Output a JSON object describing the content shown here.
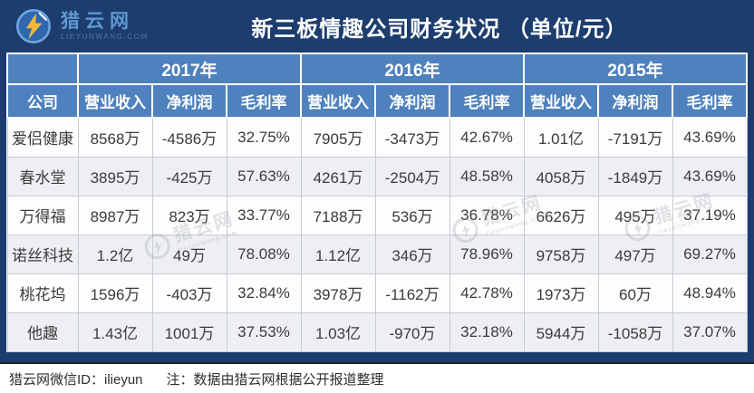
{
  "banner": {
    "logo_cn": "猎云网",
    "logo_en": "LIEYUNWANG.COM",
    "title": "新三板情趣公司财务状况 （单位/元）"
  },
  "icons": {
    "logo": "lightning-bolt-in-circle",
    "watermark": "lightning-bolt-in-circle"
  },
  "colors": {
    "banner_navy": "#1d3d6e",
    "header_blue": "#4e81bd",
    "row_alt": "#edeff3",
    "logo_yellow": "#f0b93c",
    "data_text": "#3b3b3b"
  },
  "table": {
    "company_header": "公司",
    "year_groups": [
      "2017年",
      "2016年",
      "2015年"
    ],
    "metric_headers": [
      "营业收入",
      "净利润",
      "毛利率"
    ],
    "rows": [
      {
        "company": "爱侣健康",
        "values": [
          "8568万",
          "-4586万",
          "32.75%",
          "7905万",
          "-3473万",
          "42.67%",
          "1.01亿",
          "-7191万",
          "43.69%"
        ]
      },
      {
        "company": "春水堂",
        "values": [
          "3895万",
          "-425万",
          "57.63%",
          "4261万",
          "-2504万",
          "48.58%",
          "4058万",
          "-1849万",
          "43.69%"
        ]
      },
      {
        "company": "万得福",
        "values": [
          "8987万",
          "823万",
          "33.77%",
          "7188万",
          "536万",
          "36.78%",
          "6626万",
          "495万",
          "37.19%"
        ]
      },
      {
        "company": "诺丝科技",
        "values": [
          "1.2亿",
          "49万",
          "78.08%",
          "1.12亿",
          "346万",
          "78.96%",
          "9758万",
          "497万",
          "69.27%"
        ]
      },
      {
        "company": "桃花坞",
        "values": [
          "1596万",
          "-403万",
          "32.84%",
          "3978万",
          "-1162万",
          "42.78%",
          "1973万",
          "60万",
          "48.94%"
        ]
      },
      {
        "company": "他趣",
        "values": [
          "1.43亿",
          "1001万",
          "37.53%",
          "1.03亿",
          "-970万",
          "32.18%",
          "5944万",
          "-1058万",
          "37.07%"
        ]
      }
    ]
  },
  "watermark": {
    "cn": "猎云网",
    "en": "lieyunwang.com"
  },
  "footer": {
    "wechat": "猎云网微信ID：ilieyun",
    "note": "注：数据由猎云网根据公开报道整理"
  },
  "chart_data": {
    "type": "table",
    "title": "新三板情趣公司财务状况（单位/元）",
    "column_groups": [
      "2017年",
      "2016年",
      "2015年"
    ],
    "columns": [
      "公司",
      "2017年营业收入",
      "2017年净利润",
      "2017年毛利率",
      "2016年营业收入",
      "2016年净利润",
      "2016年毛利率",
      "2015年营业收入",
      "2015年净利润",
      "2015年毛利率"
    ],
    "rows": [
      [
        "爱侣健康",
        "8568万",
        "-4586万",
        "32.75%",
        "7905万",
        "-3473万",
        "42.67%",
        "1.01亿",
        "-7191万",
        "43.69%"
      ],
      [
        "春水堂",
        "3895万",
        "-425万",
        "57.63%",
        "4261万",
        "-2504万",
        "48.58%",
        "4058万",
        "-1849万",
        "43.69%"
      ],
      [
        "万得福",
        "8987万",
        "823万",
        "33.77%",
        "7188万",
        "536万",
        "36.78%",
        "6626万",
        "495万",
        "37.19%"
      ],
      [
        "诺丝科技",
        "1.2亿",
        "49万",
        "78.08%",
        "1.12亿",
        "346万",
        "78.96%",
        "9758万",
        "497万",
        "69.27%"
      ],
      [
        "桃花坞",
        "1596万",
        "-403万",
        "32.84%",
        "3978万",
        "-1162万",
        "42.78%",
        "1973万",
        "60万",
        "48.94%"
      ],
      [
        "他趣",
        "1.43亿",
        "1001万",
        "37.53%",
        "1.03亿",
        "-970万",
        "32.18%",
        "5944万",
        "-1058万",
        "37.07%"
      ]
    ]
  }
}
